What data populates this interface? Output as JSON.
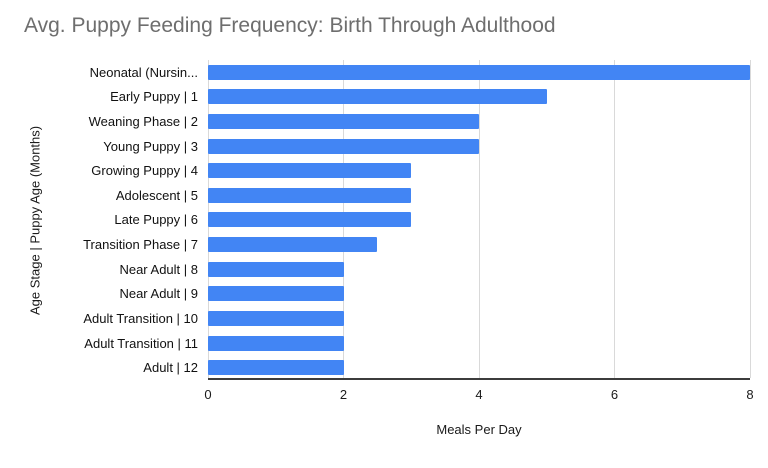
{
  "chart_data": {
    "type": "bar",
    "orientation": "horizontal",
    "title": "Avg. Puppy Feeding Frequency: Birth Through Adulthood",
    "xlabel": "Meals Per Day",
    "ylabel": "Age Stage |  Puppy Age (Months)",
    "categories": [
      "Neonatal (Nursin...",
      "Early Puppy | 1",
      "Weaning Phase | 2",
      "Young Puppy | 3",
      "Growing Puppy | 4",
      "Adolescent | 5",
      "Late Puppy | 6",
      "Transition Phase | 7",
      "Near Adult | 8",
      "Near Adult | 9",
      "Adult Transition | 10",
      "Adult Transition | 11",
      "Adult | 12"
    ],
    "values": [
      8,
      5,
      4,
      4,
      3,
      3,
      3,
      2.5,
      2,
      2,
      2,
      2,
      2
    ],
    "xlim": [
      0,
      8
    ],
    "xticks": [
      0,
      2,
      4,
      6,
      8
    ],
    "bar_color": "#4285f4",
    "grid": true,
    "gridline_color": "#d9d9d9",
    "axis_line_color": "#3c3c3c",
    "title_color": "#6e6e6e",
    "background": "#ffffff",
    "legend": "none"
  }
}
